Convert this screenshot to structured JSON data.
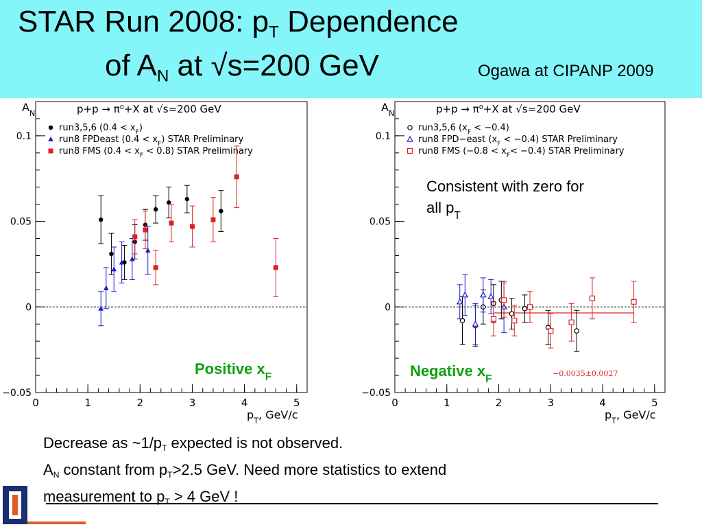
{
  "slide": {
    "title_line1_main": "STAR Run 2008:  p",
    "title_line1_sub": "T",
    "title_line1_end": " Dependence",
    "title_line2_main": "of A",
    "title_line2_sub": "N",
    "title_line2_end": " at  √s=200 GeV",
    "credit": "Ogawa at CIPANP 2009"
  },
  "footnote": {
    "line1_a": "Decrease as  ~1/p",
    "line1_sub": "T",
    "line1_b": " expected is not observed.",
    "line2_a": "A",
    "line2_sub1": "N",
    "line2_b": " constant from p",
    "line2_sub2": "T",
    "line2_c": ">2.5 GeV.  Need more statistics to extend",
    "line3_a": "measurement to  p",
    "line3_sub": "T",
    "line3_b": " > 4 GeV !"
  },
  "colors": {
    "header_bg": "#84f5f8",
    "green": "#10a010",
    "red": "#e02020",
    "blue": "#1a1acc",
    "logo_blue": "#1a2f6f",
    "logo_orange": "#e15b24"
  },
  "chart_data": [
    {
      "type": "scatter",
      "ylabel_main": "A",
      "ylabel_sub": "N",
      "reaction": "p+p → π⁰+X at √s=200 GeV",
      "xlabel_main": "p",
      "xlabel_sub": "T",
      "xlabel_end": ", GeV/c",
      "xlim": [
        0,
        5.2
      ],
      "ylim": [
        -0.05,
        0.12
      ],
      "xticks": [
        0,
        1,
        2,
        3,
        4,
        5
      ],
      "yticks": [
        -0.05,
        0,
        0.05,
        0.1
      ],
      "ytick_labels": [
        "−0.05",
        "0",
        "0.05",
        "0.1"
      ],
      "xtick_labels": [
        "0",
        "1",
        "2",
        "3",
        "4",
        "5"
      ],
      "zero_line": true,
      "annotation_main": "Positive x",
      "annotation_sub": "F",
      "series": [
        {
          "name": "run3,5,6 (0.4 < xF)",
          "color": "#000000",
          "marker": "filled-circle",
          "points": [
            [
              1.25,
              0.051,
              0.014
            ],
            [
              1.45,
              0.031,
              0.012
            ],
            [
              1.7,
              0.026,
              0.01
            ],
            [
              1.9,
              0.038,
              0.01
            ],
            [
              2.1,
              0.048,
              0.009
            ],
            [
              2.3,
              0.057,
              0.008
            ],
            [
              2.55,
              0.061,
              0.009
            ],
            [
              2.9,
              0.063,
              0.008
            ],
            [
              3.55,
              0.056,
              0.012
            ]
          ]
        },
        {
          "name": "run8 FPDeast (0.4 < xF)  STAR Preliminary",
          "color": "#1a1acc",
          "marker": "filled-triangle",
          "points": [
            [
              1.25,
              -0.001,
              0.01
            ],
            [
              1.35,
              0.011,
              0.012
            ],
            [
              1.5,
              0.022,
              0.013
            ],
            [
              1.65,
              0.026,
              0.012
            ],
            [
              1.85,
              0.028,
              0.012
            ],
            [
              2.15,
              0.033,
              0.014
            ]
          ]
        },
        {
          "name": "run8 FMS (0.4 < xF < 0.8) STAR Preliminary",
          "color": "#e02020",
          "marker": "filled-square",
          "points": [
            [
              1.9,
              0.041,
              0.01
            ],
            [
              2.1,
              0.045,
              0.011
            ],
            [
              2.3,
              0.023,
              0.01
            ],
            [
              2.6,
              0.049,
              0.011
            ],
            [
              3.0,
              0.047,
              0.012
            ],
            [
              3.4,
              0.051,
              0.013
            ],
            [
              3.85,
              0.076,
              0.018
            ],
            [
              4.6,
              0.023,
              0.017
            ]
          ]
        }
      ],
      "legend": [
        {
          "pre": "run3,5,6 (0.4 < x",
          "sub": "F",
          "post": ")"
        },
        {
          "pre": "run8 FPDeast (0.4 < x",
          "sub": "F",
          "post": ")  STAR Preliminary"
        },
        {
          "pre": "run8 FMS (0.4 < x",
          "sub": "F",
          "post": " < 0.8) STAR Preliminary"
        }
      ]
    },
    {
      "type": "scatter",
      "ylabel_main": "A",
      "ylabel_sub": "N",
      "reaction": "p+p → π⁰+X at √s=200 GeV",
      "xlabel_main": "p",
      "xlabel_sub": "T",
      "xlabel_end": ", GeV/c",
      "xlim": [
        0,
        5.2
      ],
      "ylim": [
        -0.05,
        0.12
      ],
      "xticks": [
        0,
        1,
        2,
        3,
        4,
        5
      ],
      "yticks": [
        -0.05,
        0,
        0.05,
        0.1
      ],
      "ytick_labels": [
        "−0.05",
        "0",
        "0.05",
        "0.1"
      ],
      "xtick_labels": [
        "0",
        "1",
        "2",
        "3",
        "4",
        "5"
      ],
      "zero_line": true,
      "annotation_main": "Negative x",
      "annotation_sub": "F",
      "consistent_line1": "Consistent with zero for",
      "consistent_line2_main": "all p",
      "consistent_line2_sub": "T",
      "fit_label": "−0.0035±0.0027",
      "fit": {
        "value": -0.0035,
        "x_range": [
          1.9,
          4.6
        ]
      },
      "series": [
        {
          "name": "run3,5,6 (xF < −0.4)",
          "color": "#000000",
          "marker": "open-circle",
          "points": [
            [
              1.3,
              -0.008,
              0.014
            ],
            [
              1.55,
              -0.011,
              0.012
            ],
            [
              1.7,
              0.0,
              0.01
            ],
            [
              1.9,
              0.002,
              0.011
            ],
            [
              2.05,
              0.004,
              0.011
            ],
            [
              2.25,
              -0.004,
              0.009
            ],
            [
              2.5,
              -0.001,
              0.008
            ],
            [
              2.95,
              -0.012,
              0.01
            ],
            [
              3.5,
              -0.014,
              0.012
            ]
          ]
        },
        {
          "name": "run8 FPD−east (xF < −0.4) STAR Preliminary",
          "color": "#1a1acc",
          "marker": "open-triangle",
          "points": [
            [
              1.25,
              0.003,
              0.01
            ],
            [
              1.35,
              0.007,
              0.012
            ],
            [
              1.55,
              -0.01,
              0.012
            ],
            [
              1.7,
              0.007,
              0.01
            ],
            [
              1.85,
              0.006,
              0.01
            ],
            [
              2.1,
              0.0,
              0.015
            ]
          ]
        },
        {
          "name": "run8 FMS (−0.8 < xF < −0.4) STAR Preliminary",
          "color": "#e02020",
          "marker": "open-square",
          "points": [
            [
              1.9,
              -0.007,
              0.01
            ],
            [
              2.1,
              0.004,
              0.01
            ],
            [
              2.3,
              -0.008,
              0.009
            ],
            [
              2.6,
              0.0,
              0.009
            ],
            [
              3.0,
              -0.014,
              0.01
            ],
            [
              3.4,
              -0.009,
              0.011
            ],
            [
              3.8,
              0.005,
              0.012
            ],
            [
              4.6,
              0.003,
              0.012
            ]
          ]
        }
      ],
      "legend": [
        {
          "pre": "run3,5,6        (x",
          "sub": "F",
          "post": " < −0.4)"
        },
        {
          "pre": "run8 FPD−east (x",
          "sub": "F",
          "post": " < −0.4) STAR Preliminary"
        },
        {
          "pre": "run8 FMS (−0.8 < x",
          "sub": "F",
          "post": "< −0.4) STAR Preliminary"
        }
      ]
    }
  ]
}
